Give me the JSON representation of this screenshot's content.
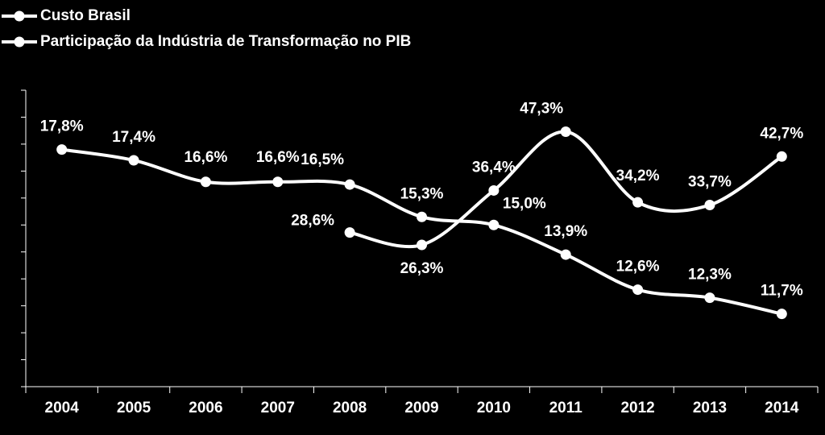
{
  "chart_data": {
    "type": "line",
    "categories": [
      "2004",
      "2005",
      "2006",
      "2007",
      "2008",
      "2009",
      "2010",
      "2011",
      "2012",
      "2013",
      "2014"
    ],
    "series": [
      {
        "name": "Custo Brasil",
        "color": "#ffffff",
        "axis": "y2",
        "values": [
          null,
          null,
          null,
          null,
          28.6,
          26.3,
          36.4,
          47.3,
          34.2,
          33.7,
          42.7
        ],
        "value_labels": [
          null,
          null,
          null,
          null,
          "28,6%",
          "26,3%",
          "36,4%",
          "47,3%",
          "34,2%",
          "33,7%",
          "42,7%"
        ]
      },
      {
        "name": "Participação da Indústria de Transformação no PIB",
        "color": "#ffffff",
        "values": [
          17.8,
          17.4,
          16.6,
          16.6,
          16.5,
          15.3,
          15.0,
          13.9,
          12.6,
          12.3,
          11.7
        ],
        "value_labels": [
          "17,8%",
          "17,4%",
          "16,6%",
          "16,6%",
          "16,5%",
          "15,3%",
          "15,0%",
          "13,9%",
          "12,6%",
          "12,3%",
          "11,7%"
        ]
      }
    ],
    "ylim": [
      9,
      20
    ],
    "yticks": [
      9,
      10,
      11,
      12,
      13,
      14,
      15,
      16,
      17,
      18,
      19,
      20
    ],
    "y2lim": [
      0,
      55
    ],
    "legend": "top-left"
  }
}
